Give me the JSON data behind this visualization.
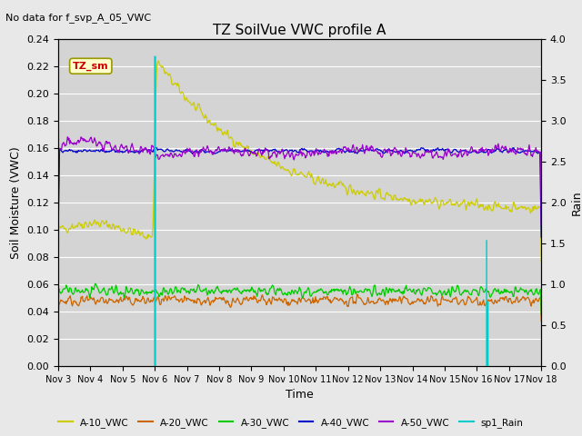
{
  "title": "TZ SoilVue VWC profile A",
  "subtitle": "No data for f_svp_A_05_VWC",
  "xlabel": "Time",
  "ylabel_left": "Soil Moisture (VWC)",
  "ylabel_right": "Rain",
  "ylim_left": [
    0.0,
    0.24
  ],
  "ylim_right": [
    0.0,
    4.0
  ],
  "background_color": "#e8e8e8",
  "plot_background": "#d4d4d4",
  "grid_color": "#ffffff",
  "title_fontsize": 11,
  "subtitle_fontsize": 8,
  "annotation_text": "TZ_sm",
  "annotation_box_color": "#ffffcc",
  "annotation_text_color": "#cc0000",
  "annotation_border_color": "#999900",
  "a10_color": "#cccc00",
  "a20_color": "#cc6600",
  "a30_color": "#00cc00",
  "a40_color": "#0000cc",
  "a50_color": "#9900cc",
  "rain_color": "#00cccc",
  "tick_labels": [
    "Nov 3",
    "Nov 4",
    "Nov 5",
    "Nov 6",
    "Nov 7",
    "Nov 8",
    "Nov 9",
    "Nov 10",
    "Nov 11",
    "Nov 12",
    "Nov 13",
    "Nov 14",
    "Nov 15",
    "Nov 16",
    "Nov 17",
    "Nov 18"
  ],
  "yticks_left": [
    0.0,
    0.02,
    0.04,
    0.06,
    0.08,
    0.1,
    0.12,
    0.14,
    0.16,
    0.18,
    0.2,
    0.22,
    0.24
  ],
  "yticks_right": [
    0.0,
    0.5,
    1.0,
    1.5,
    2.0,
    2.5,
    3.0,
    3.5,
    4.0
  ]
}
